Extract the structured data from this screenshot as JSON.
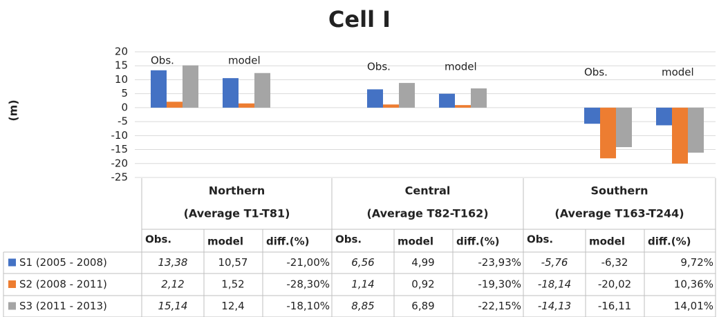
{
  "chart_data": {
    "type": "bar",
    "title": "Cell I",
    "y_label": "(m)",
    "ylim": [
      -25,
      20
    ],
    "yticks": [
      20,
      15,
      10,
      5,
      0,
      -5,
      -10,
      -15,
      -20,
      -25
    ],
    "grid": true,
    "groups": [
      {
        "name": "Northern",
        "subtitle": "(Average T1-T81)"
      },
      {
        "name": "Central",
        "subtitle": "(Average T82-T162)"
      },
      {
        "name": "Southern",
        "subtitle": "(Average T163-T244)"
      }
    ],
    "categories": [
      "Obs.",
      "model",
      "Obs.",
      "model",
      "Obs.",
      "model"
    ],
    "diff_header": "diff.(%)",
    "series": [
      {
        "name": "S1 (2005 - 2008)",
        "color": "#4472c4",
        "values": [
          13.38,
          10.57,
          6.56,
          4.99,
          -5.76,
          -6.32
        ],
        "value_labels": [
          "13,38",
          "10,57",
          "6,56",
          "4,99",
          "-5,76",
          "-6,32"
        ],
        "diff": [
          -21.0,
          -23.93,
          9.72
        ],
        "diff_labels": [
          "-21,00%",
          "-23,93%",
          "9,72%"
        ]
      },
      {
        "name": "S2 (2008 - 2011)",
        "color": "#ed7d31",
        "values": [
          2.12,
          1.52,
          1.14,
          0.92,
          -18.14,
          -20.02
        ],
        "value_labels": [
          "2,12",
          "1,52",
          "1,14",
          "0,92",
          "-18,14",
          "-20,02"
        ],
        "diff": [
          -28.3,
          -19.3,
          10.36
        ],
        "diff_labels": [
          "-28,30%",
          "-19,30%",
          "10,36%"
        ]
      },
      {
        "name": "S3 (2011 - 2013)",
        "color": "#a5a5a5",
        "values": [
          15.14,
          12.4,
          8.85,
          6.89,
          -14.13,
          -16.11
        ],
        "value_labels": [
          "15,14",
          "12,4",
          "8,85",
          "6,89",
          "-14,13",
          "-16,11"
        ],
        "diff": [
          -18.1,
          -22.15,
          14.01
        ],
        "diff_labels": [
          "-18,10%",
          "-22,15%",
          "14,01%"
        ]
      }
    ]
  }
}
